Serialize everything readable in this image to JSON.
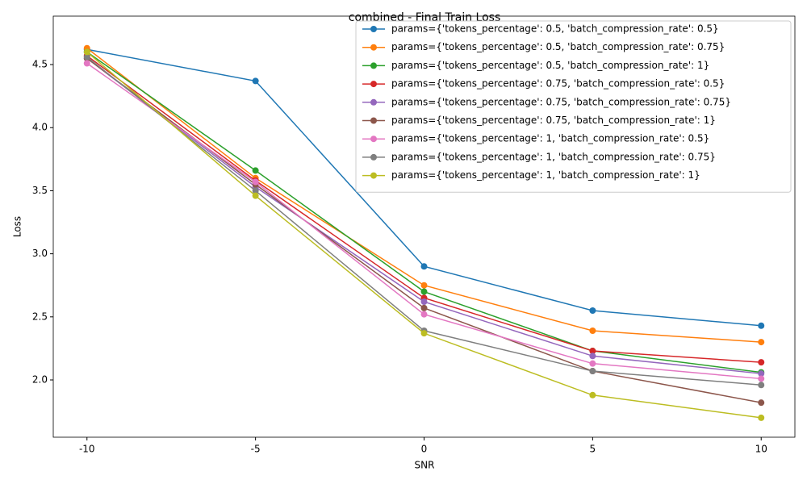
{
  "chart_data": {
    "type": "line",
    "title": "combined - Final Train Loss",
    "x_label": "SNR",
    "y_label": "Loss",
    "x": [
      -10,
      -5,
      0,
      5,
      10
    ],
    "xlim": [
      -11,
      11
    ],
    "xticks": [
      -10,
      -5,
      0,
      5,
      10
    ],
    "ylim": [
      1.546,
      4.884
    ],
    "yticks": [
      {
        "value": 2,
        "label": "2.0"
      },
      2.5,
      {
        "value": 3,
        "label": "3.0"
      },
      3.5,
      {
        "value": 4,
        "label": "4.0"
      },
      4.5
    ],
    "legend_position": "upper right",
    "series": [
      {
        "name": "params={'tokens_percentage': 0.5, 'batch_compression_rate': 0.5}",
        "color": "#1f77b4",
        "values": [
          4.62,
          4.37,
          2.9,
          2.55,
          2.43
        ]
      },
      {
        "name": "params={'tokens_percentage': 0.5, 'batch_compression_rate': 0.75}",
        "color": "#ff7f0e",
        "values": [
          4.63,
          3.6,
          2.75,
          2.39,
          2.3
        ]
      },
      {
        "name": "params={'tokens_percentage': 0.5, 'batch_compression_rate': 1}",
        "color": "#2ca02c",
        "values": [
          4.6,
          3.66,
          2.7,
          2.23,
          2.06
        ]
      },
      {
        "name": "params={'tokens_percentage': 0.75, 'batch_compression_rate': 0.5}",
        "color": "#d62728",
        "values": [
          4.57,
          3.58,
          2.65,
          2.23,
          2.14
        ]
      },
      {
        "name": "params={'tokens_percentage': 0.75, 'batch_compression_rate': 0.75}",
        "color": "#9467bd",
        "values": [
          4.55,
          3.53,
          2.62,
          2.19,
          2.05
        ]
      },
      {
        "name": "params={'tokens_percentage': 0.75, 'batch_compression_rate': 1}",
        "color": "#8c564b",
        "values": [
          4.55,
          3.55,
          2.57,
          2.07,
          1.82
        ]
      },
      {
        "name": "params={'tokens_percentage': 1, 'batch_compression_rate': 0.5}",
        "color": "#e377c2",
        "values": [
          4.51,
          3.57,
          2.52,
          2.13,
          2.01
        ]
      },
      {
        "name": "params={'tokens_percentage': 1, 'batch_compression_rate': 0.75}",
        "color": "#7f7f7f",
        "values": [
          4.56,
          3.5,
          2.39,
          2.07,
          1.96
        ]
      },
      {
        "name": "params={'tokens_percentage': 1, 'batch_compression_rate': 1}",
        "color": "#bcbd22",
        "values": [
          4.6,
          3.46,
          2.37,
          1.88,
          1.7
        ]
      }
    ]
  }
}
